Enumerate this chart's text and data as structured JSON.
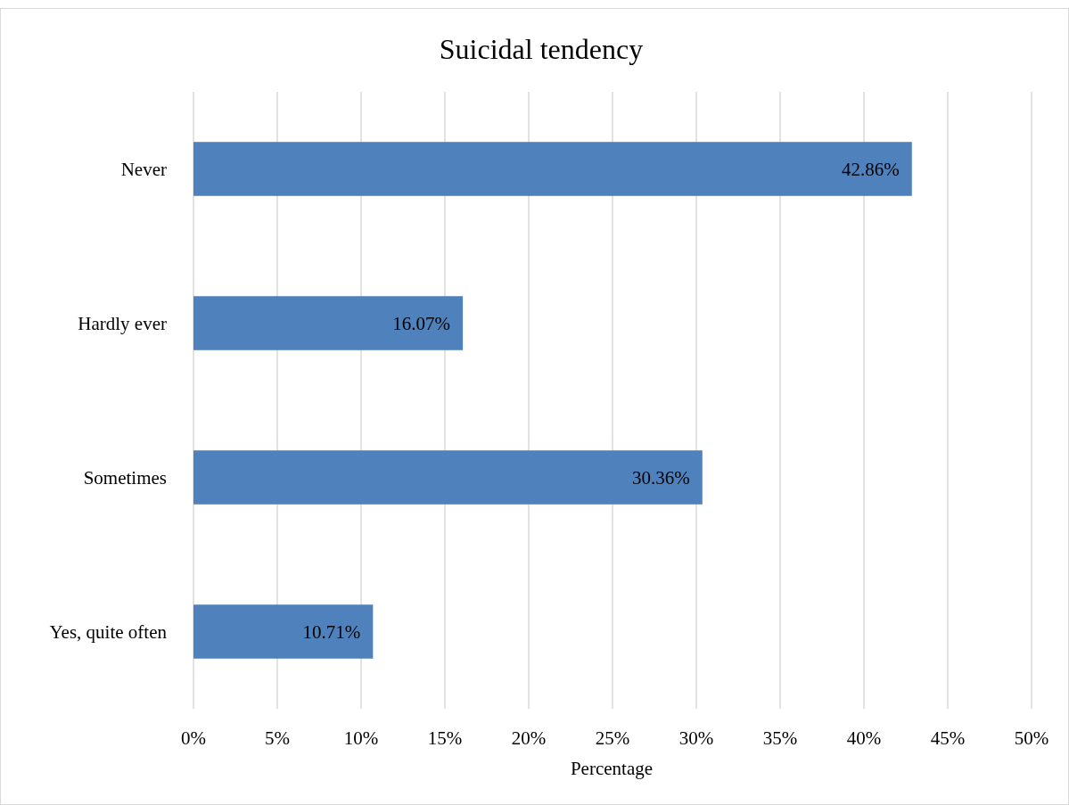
{
  "chart_data": {
    "type": "bar",
    "orientation": "horizontal",
    "title": "Suicidal tendency",
    "xlabel": "Percentage",
    "categories": [
      "Never",
      "Hardly ever",
      "Sometimes",
      "Yes, quite often"
    ],
    "values": [
      42.86,
      16.07,
      30.36,
      10.71
    ],
    "value_labels": [
      "42.86%",
      "16.07%",
      "30.36%",
      "10.71%"
    ],
    "color": "#4f81bd",
    "xlim": [
      0,
      50
    ],
    "xticks": [
      {
        "value": 0,
        "label": "0%"
      },
      {
        "value": 5,
        "label": "5%"
      },
      {
        "value": 10,
        "label": "10%"
      },
      {
        "value": 15,
        "label": "15%"
      },
      {
        "value": 20,
        "label": "20%"
      },
      {
        "value": 25,
        "label": "25%"
      },
      {
        "value": 30,
        "label": "30%"
      },
      {
        "value": 35,
        "label": "35%"
      },
      {
        "value": 40,
        "label": "40%"
      },
      {
        "value": 45,
        "label": "45%"
      },
      {
        "value": 50,
        "label": "50%"
      }
    ],
    "grid": "x"
  }
}
